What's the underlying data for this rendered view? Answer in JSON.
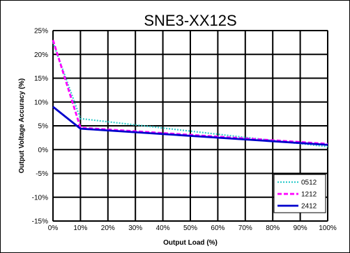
{
  "chart_data": {
    "type": "line",
    "title": "SNE3-XX12S",
    "xlabel": "Output Load (%)",
    "ylabel": "Output Voltage Accuracy (%)",
    "x": [
      0,
      10,
      100
    ],
    "x_tick_labels": [
      "0%",
      "10%",
      "20%",
      "30%",
      "40%",
      "50%",
      "60%",
      "70%",
      "80%",
      "90%",
      "100%"
    ],
    "y_tick_labels": [
      "25%",
      "20%",
      "15%",
      "10%",
      "5%",
      "0%",
      "-5%",
      "-10%",
      "-15%"
    ],
    "xlim": [
      0,
      100
    ],
    "ylim": [
      -15,
      25
    ],
    "grid": true,
    "legend_position": "bottom-right",
    "series": [
      {
        "name": "0512",
        "values": [
          22.5,
          6.5,
          0.6
        ],
        "color": "#33CCCC",
        "style": "dotted"
      },
      {
        "name": "1212",
        "values": [
          23.0,
          4.6,
          1.2
        ],
        "color": "#FF00FF",
        "style": "dashed"
      },
      {
        "name": "2412",
        "values": [
          9.0,
          4.4,
          1.0
        ],
        "color": "#0000CC",
        "style": "solid"
      }
    ]
  }
}
